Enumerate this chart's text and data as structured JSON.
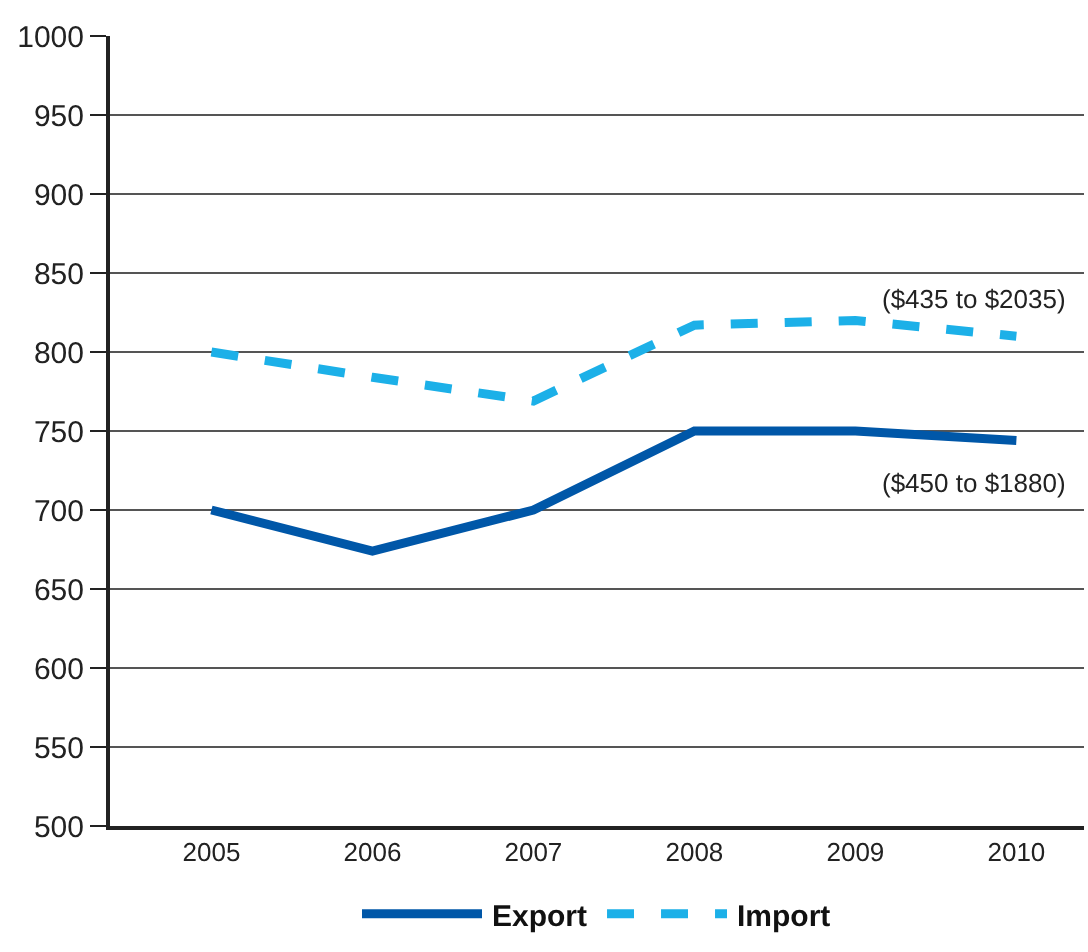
{
  "chart_data": {
    "type": "line",
    "categories": [
      "2005",
      "2006",
      "2007",
      "2008",
      "2009",
      "2010"
    ],
    "series": [
      {
        "name": "Export",
        "color": "#0057a8",
        "line_style": "solid",
        "values": [
          700,
          674,
          700,
          750,
          750,
          744
        ]
      },
      {
        "name": "Import",
        "color": "#1cb0e8",
        "line_style": "dashed",
        "values": [
          800,
          784,
          769,
          817,
          820,
          810
        ]
      }
    ],
    "ylim": [
      500,
      1000
    ],
    "yticks": [
      500,
      550,
      600,
      650,
      700,
      750,
      800,
      850,
      900,
      950,
      1000
    ],
    "grid": "y",
    "legend": "bottom",
    "annotations": [
      "($435 to $2035)",
      "($450 to $1880)"
    ]
  }
}
